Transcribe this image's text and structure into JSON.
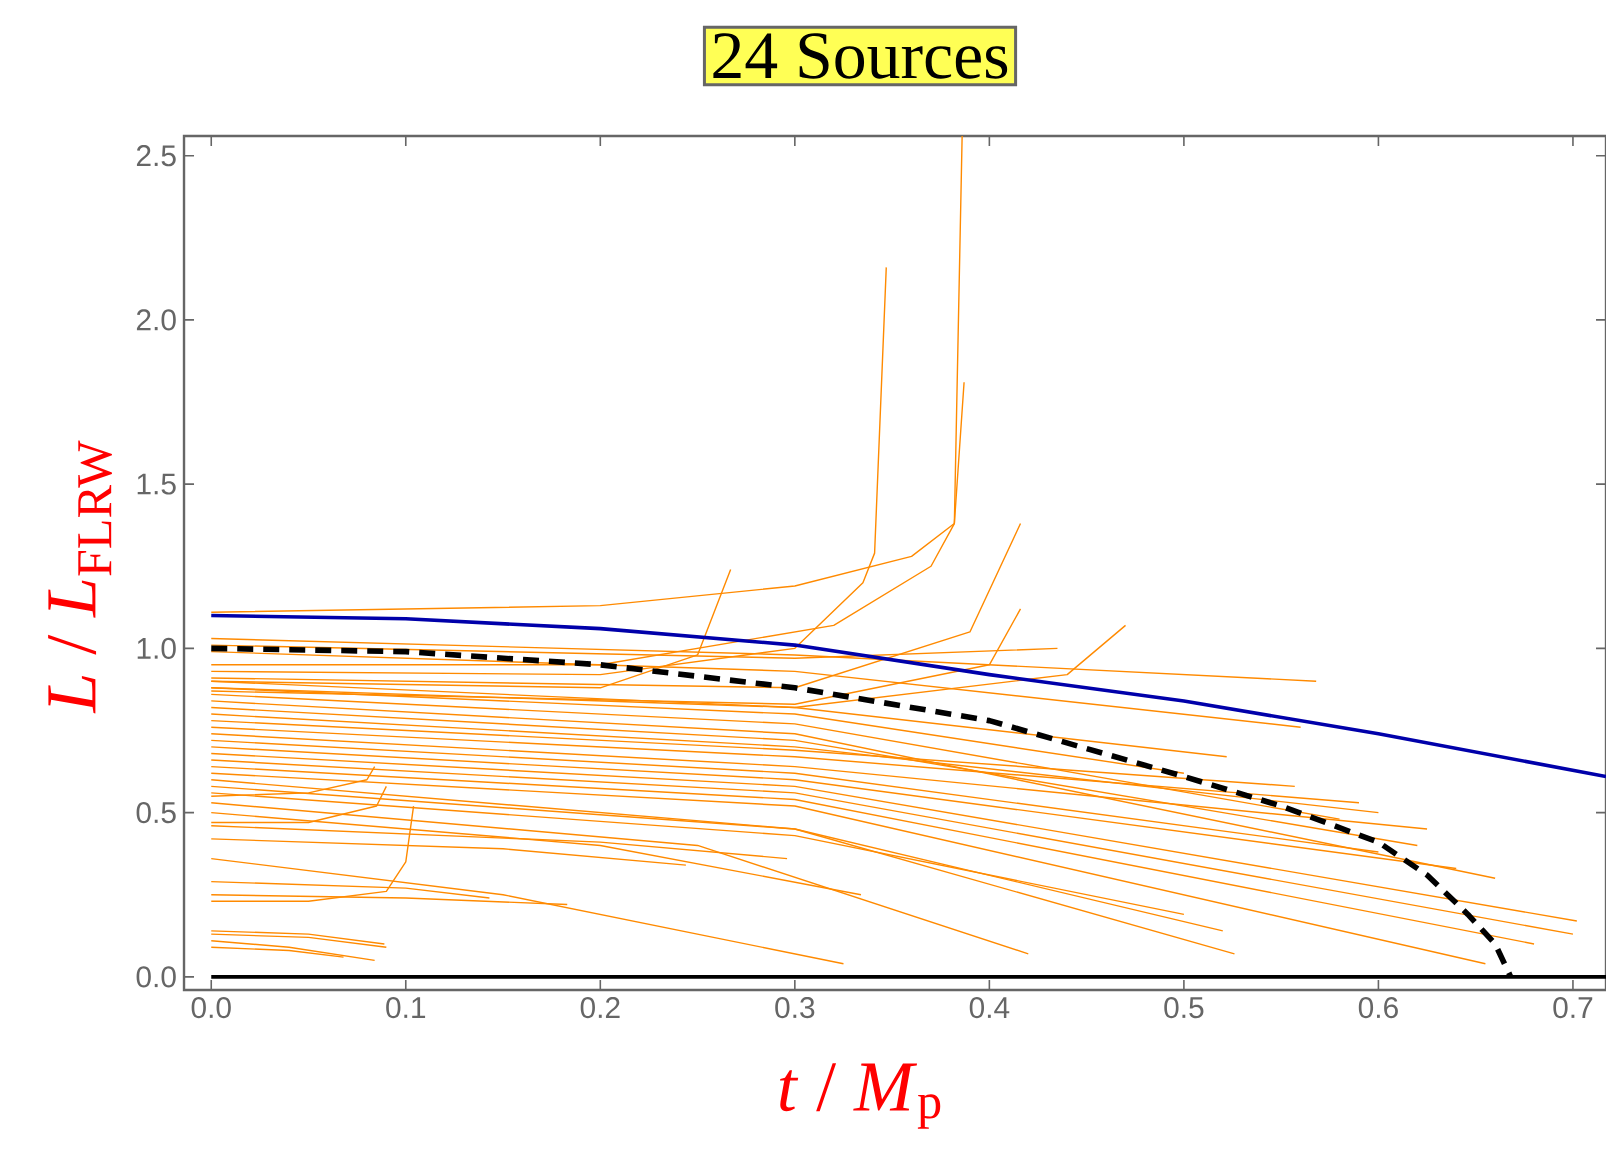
{
  "chart_data": {
    "type": "line",
    "title": "24 Sources",
    "xlabel": "*t* / *M*$_{p}$",
    "ylabel": "*L* / *L*$_{FLRW}$",
    "xlim": [
      -0.014,
      0.717
    ],
    "ylim": [
      -0.04,
      2.56
    ],
    "xticks": [
      {
        "value": 0.0,
        "label": "0.0"
      },
      0.1,
      0.2,
      0.3,
      0.4,
      0.5,
      0.6,
      0.7
    ],
    "yticks": [
      {
        "value": 0.0,
        "label": "0.0"
      },
      0.5,
      {
        "value": 1.0,
        "label": "1.0"
      },
      1.5,
      {
        "value": 2.0,
        "label": "2.0"
      },
      2.5
    ],
    "series": [
      {
        "color": "#ff8a00",
        "x": [
          0,
          0.05,
          0.089
        ],
        "values": [
          0.14,
          0.13,
          0.1
        ]
      },
      {
        "color": "#ff8a00",
        "x": [
          0,
          0.05,
          0.09
        ],
        "values": [
          0.13,
          0.12,
          0.09
        ]
      },
      {
        "color": "#ff8a00",
        "x": [
          0,
          0.04,
          0.084
        ],
        "values": [
          0.11,
          0.09,
          0.05
        ]
      },
      {
        "color": "#ff8a00",
        "x": [
          0,
          0.04,
          0.068
        ],
        "values": [
          0.09,
          0.08,
          0.06
        ]
      },
      {
        "color": "#ff8a00",
        "x": [
          0,
          0.1,
          0.143
        ],
        "values": [
          0.29,
          0.27,
          0.24
        ]
      },
      {
        "color": "#ff8a00",
        "x": [
          0,
          0.1,
          0.183
        ],
        "values": [
          0.25,
          0.24,
          0.22
        ]
      },
      {
        "color": "#ff8a00",
        "x": [
          0,
          0.05,
          0.09,
          0.1,
          0.104
        ],
        "values": [
          0.23,
          0.23,
          0.26,
          0.35,
          0.52
        ]
      },
      {
        "color": "#ff8a00",
        "x": [
          0,
          0.15,
          0.244
        ],
        "values": [
          0.42,
          0.39,
          0.34
        ]
      },
      {
        "color": "#ff8a00",
        "x": [
          0,
          0.15,
          0.325
        ],
        "values": [
          0.36,
          0.25,
          0.04
        ]
      },
      {
        "color": "#ff8a00",
        "x": [
          0,
          0.2,
          0.296
        ],
        "values": [
          0.46,
          0.41,
          0.36
        ]
      },
      {
        "color": "#ff8a00",
        "x": [
          0,
          0.2,
          0.334
        ],
        "values": [
          0.5,
          0.4,
          0.25
        ]
      },
      {
        "color": "#ff8a00",
        "x": [
          0,
          0.25,
          0.42
        ],
        "values": [
          0.53,
          0.4,
          0.07
        ]
      },
      {
        "color": "#ff8a00",
        "x": [
          0,
          0.3,
          0.5
        ],
        "values": [
          0.56,
          0.43,
          0.19
        ]
      },
      {
        "color": "#ff8a00",
        "x": [
          0,
          0.3,
          0.52
        ],
        "values": [
          0.58,
          0.45,
          0.14
        ]
      },
      {
        "color": "#ff8a00",
        "x": [
          0,
          0.3,
          0.526
        ],
        "values": [
          0.6,
          0.45,
          0.07
        ]
      },
      {
        "color": "#ff8a00",
        "x": [
          0,
          0.05,
          0.085,
          0.09
        ],
        "values": [
          0.47,
          0.47,
          0.52,
          0.58
        ]
      },
      {
        "color": "#ff8a00",
        "x": [
          0,
          0.05,
          0.08,
          0.084
        ],
        "values": [
          0.55,
          0.56,
          0.6,
          0.64
        ]
      },
      {
        "color": "#ff8a00",
        "x": [
          0,
          0.3,
          0.655
        ],
        "values": [
          0.62,
          0.52,
          0.04
        ]
      },
      {
        "color": "#ff8a00",
        "x": [
          0,
          0.3,
          0.68
        ],
        "values": [
          0.64,
          0.54,
          0.1
        ]
      },
      {
        "color": "#ff8a00",
        "x": [
          0,
          0.3,
          0.7
        ],
        "values": [
          0.66,
          0.56,
          0.13
        ]
      },
      {
        "color": "#ff8a00",
        "x": [
          0,
          0.3,
          0.702
        ],
        "values": [
          0.68,
          0.58,
          0.17
        ]
      },
      {
        "color": "#ff8a00",
        "x": [
          0,
          0.3,
          0.64
        ],
        "values": [
          0.7,
          0.6,
          0.33
        ]
      },
      {
        "color": "#ff8a00",
        "x": [
          0,
          0.3,
          0.6
        ],
        "values": [
          0.72,
          0.62,
          0.38
        ]
      },
      {
        "color": "#ff8a00",
        "x": [
          0,
          0.3,
          0.625
        ],
        "values": [
          0.74,
          0.64,
          0.45
        ]
      },
      {
        "color": "#ff8a00",
        "x": [
          0,
          0.3,
          0.59
        ],
        "values": [
          0.76,
          0.67,
          0.53
        ]
      },
      {
        "color": "#ff8a00",
        "x": [
          0,
          0.3,
          0.557
        ],
        "values": [
          0.78,
          0.69,
          0.58
        ]
      },
      {
        "color": "#ff8a00",
        "x": [
          0,
          0.3,
          0.6
        ],
        "values": [
          0.8,
          0.7,
          0.5
        ]
      },
      {
        "color": "#ff8a00",
        "x": [
          0,
          0.3,
          0.62
        ],
        "values": [
          0.82,
          0.72,
          0.4
        ]
      },
      {
        "color": "#ff8a00",
        "x": [
          0,
          0.3,
          0.66
        ],
        "values": [
          0.84,
          0.74,
          0.3
        ]
      },
      {
        "color": "#ff8a00",
        "x": [
          0,
          0.3,
          0.58
        ],
        "values": [
          0.86,
          0.77,
          0.48
        ]
      },
      {
        "color": "#ff8a00",
        "x": [
          0,
          0.3,
          0.5
        ],
        "values": [
          0.88,
          0.8,
          0.62
        ]
      },
      {
        "color": "#ff8a00",
        "x": [
          0,
          0.3,
          0.522
        ],
        "values": [
          0.9,
          0.82,
          0.67
        ]
      },
      {
        "color": "#ff8a00",
        "x": [
          0,
          0.3,
          0.56
        ],
        "values": [
          0.99,
          0.93,
          0.76
        ]
      },
      {
        "color": "#ff8a00",
        "x": [
          0,
          0.3,
          0.568
        ],
        "values": [
          1.03,
          0.98,
          0.9
        ]
      },
      {
        "color": "#ff8a00",
        "x": [
          0,
          0.3,
          0.435
        ],
        "values": [
          1.01,
          0.97,
          1.0
        ]
      },
      {
        "color": "#ff8a00",
        "x": [
          0,
          0.2,
          0.3,
          0.36,
          0.382,
          0.386
        ],
        "values": [
          1.11,
          1.13,
          1.19,
          1.28,
          1.38,
          2.56
        ]
      },
      {
        "color": "#ff8a00",
        "x": [
          0,
          0.2,
          0.3,
          0.335,
          0.341,
          0.347
        ],
        "values": [
          0.93,
          0.92,
          1.0,
          1.2,
          1.29,
          2.16
        ]
      },
      {
        "color": "#ff8a00",
        "x": [
          0,
          0.2,
          0.32,
          0.37,
          0.382,
          0.387
        ],
        "values": [
          0.95,
          0.95,
          1.07,
          1.25,
          1.38,
          1.81
        ]
      },
      {
        "color": "#ff8a00",
        "x": [
          0,
          0.2,
          0.25,
          0.267
        ],
        "values": [
          0.9,
          0.88,
          0.98,
          1.24
        ]
      },
      {
        "color": "#ff8a00",
        "x": [
          0,
          0.3,
          0.39,
          0.416
        ],
        "values": [
          0.91,
          0.88,
          1.05,
          1.38
        ]
      },
      {
        "color": "#ff8a00",
        "x": [
          0,
          0.3,
          0.44,
          0.47
        ],
        "values": [
          0.88,
          0.82,
          0.92,
          1.07
        ]
      },
      {
        "color": "#ff8a00",
        "x": [
          0,
          0.3,
          0.4,
          0.416
        ],
        "values": [
          0.87,
          0.83,
          0.95,
          1.12
        ]
      },
      {
        "color": "#000000",
        "x": [
          0,
          0.717
        ],
        "values": [
          0,
          0
        ]
      },
      {
        "color": "#0000aa",
        "x": [
          0,
          0.1,
          0.2,
          0.3,
          0.4,
          0.5,
          0.6,
          0.717
        ],
        "values": [
          1.1,
          1.09,
          1.06,
          1.01,
          0.92,
          0.84,
          0.74,
          0.61
        ]
      },
      {
        "color": "#000000",
        "line_style": "dashed",
        "x": [
          0,
          0.1,
          0.2,
          0.3,
          0.4,
          0.5,
          0.55,
          0.6,
          0.625,
          0.646,
          0.66,
          0.668
        ],
        "values": [
          1.0,
          0.99,
          0.95,
          0.88,
          0.78,
          0.61,
          0.52,
          0.41,
          0.31,
          0.19,
          0.1,
          0.0
        ]
      }
    ]
  }
}
